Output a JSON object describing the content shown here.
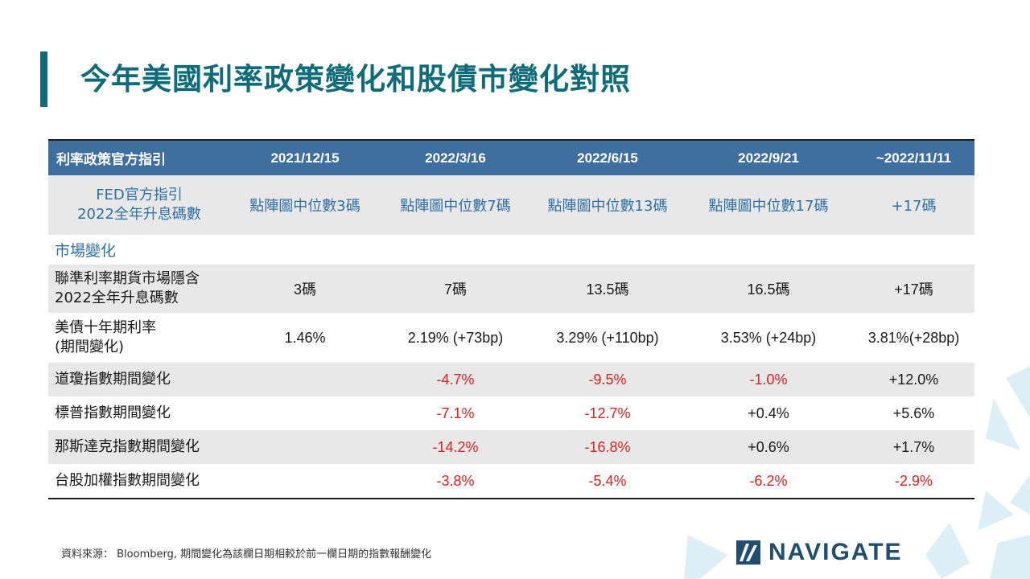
{
  "title": "今年美國利率政策變化和股債市變化對照",
  "table": {
    "headers": [
      "利率政策官方指引",
      "2021/12/15",
      "2022/3/16",
      "2022/6/15",
      "2022/9/21",
      "~2022/11/11"
    ],
    "fed_row": {
      "label_line1": "FED官方指引",
      "label_line2": "2022全年升息碼數",
      "values": [
        "點陣圖中位數3碼",
        "點陣圖中位數7碼",
        "點陣圖中位數13碼",
        "點陣圖中位數17碼",
        "+17碼"
      ]
    },
    "section_label": "市場變化",
    "futures_row": {
      "label_line1": "聯準利率期貨市場隱含",
      "label_line2": "2022全年升息碼數",
      "values": [
        "3碼",
        "7碼",
        "13.5碼",
        "16.5碼",
        "+17碼"
      ]
    },
    "bond_row": {
      "label_line1": "美債十年期利率",
      "label_line2": "(期間變化)",
      "values": [
        "1.46%",
        "2.19%  (+73bp)",
        "3.29%  (+110bp)",
        "3.53%  (+24bp)",
        "3.81%(+28bp)"
      ]
    },
    "index_rows": [
      {
        "label": "道瓊指數期間變化",
        "values": [
          "",
          "-4.7%",
          "-9.5%",
          "-1.0%",
          "+12.0%"
        ]
      },
      {
        "label": "標普指數期間變化",
        "values": [
          "",
          "-7.1%",
          "-12.7%",
          "+0.4%",
          "+5.6%"
        ]
      },
      {
        "label": "那斯達克指數期間變化",
        "values": [
          "",
          "-14.2%",
          "-16.8%",
          "+0.6%",
          "+1.7%"
        ]
      },
      {
        "label": "台股加權指數期間變化",
        "values": [
          "",
          "-3.8%",
          "-5.4%",
          "-6.2%",
          "-2.9%"
        ]
      }
    ]
  },
  "footnote": "資料來源： Bloomberg, 期間變化為該欄日期相較於前一欄日期的指數報酬變化",
  "logo": {
    "text": "NAVIGATE",
    "icon": "navigate-logo-icon"
  },
  "colors": {
    "accent": "#0e6b78",
    "header_bg": "#3e6f9e",
    "negative": "#e02020",
    "fed_text": "#2f6fa8"
  }
}
